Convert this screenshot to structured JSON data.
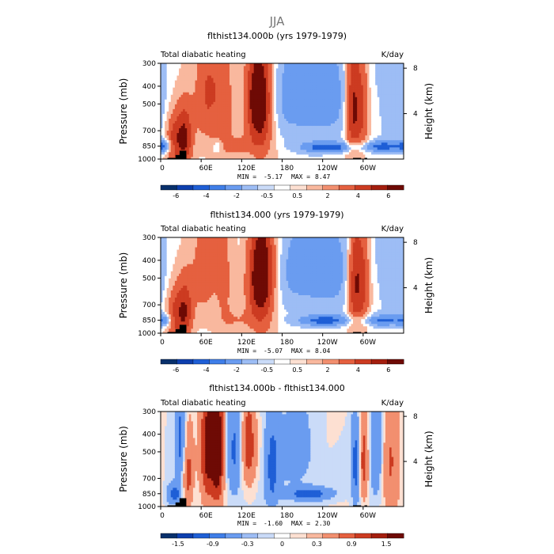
{
  "figure_title": "JJA",
  "colors": {
    "scale": [
      "#08306b",
      "#0d3fae",
      "#1f5fd6",
      "#3f7ee8",
      "#6a9cf0",
      "#9dbdf5",
      "#cadbf8",
      "#ffffff",
      "#fde0d2",
      "#f9b89e",
      "#f28f6f",
      "#e5603f",
      "#cc3b21",
      "#a41e0e",
      "#6e0a05"
    ],
    "terrain": "#000000"
  },
  "chart_data": [
    {
      "type": "heatmap",
      "title": "flthist134.000b (yrs 1979-1979)",
      "left_label": "Total diabatic heating",
      "right_label": "K/day",
      "xlabel": "",
      "ylabel": "Pressure (mb)",
      "ylabel_right": "Height (km)",
      "x_ticks": [
        "0",
        "60E",
        "120E",
        "180",
        "120W",
        "60W"
      ],
      "x_tick_lons": [
        0,
        60,
        120,
        180,
        240,
        300
      ],
      "xlim": [
        0,
        360
      ],
      "y_ticks": [
        "300",
        "400",
        "500",
        "700",
        "850",
        "1000"
      ],
      "y_tick_values": [
        300,
        400,
        500,
        700,
        850,
        1000
      ],
      "ylim": [
        1000,
        300
      ],
      "right_ticks": [
        "8",
        "4"
      ],
      "right_tick_km": [
        8,
        4
      ],
      "stats": {
        "min_label": "MIN =",
        "min": "-5.17",
        "max_label": "MAX =",
        "max": "8.47"
      },
      "colorbar_labels": [
        "-6",
        "-4",
        "-2",
        "-0.5",
        "0.5",
        "2",
        "4",
        "6"
      ],
      "colorbar_levels": [
        -6,
        -4,
        -2,
        -0.5,
        0.5,
        2,
        4,
        6
      ],
      "terrain_lons": [
        [
          10,
          28
        ],
        [
          22,
          32
        ],
        [
          28,
          38
        ],
        [
          285,
          297
        ],
        [
          302,
          306
        ]
      ],
      "terrain_ptop": [
        985,
        950,
        900,
        985,
        985
      ],
      "features": [
        {
          "lon": 35,
          "p": 780,
          "value": 6.5,
          "wlon": 9,
          "wp": 220
        },
        {
          "lon": 18,
          "p": 800,
          "value": 4,
          "wlon": 8,
          "wp": 200
        },
        {
          "lon": 70,
          "p": 450,
          "value": 4,
          "wlon": 14,
          "wp": 260
        },
        {
          "lon": 95,
          "p": 500,
          "value": 3,
          "wlon": 10,
          "wp": 300
        },
        {
          "lon": 145,
          "p": 420,
          "value": 7.5,
          "wlon": 14,
          "wp": 200
        },
        {
          "lon": 148,
          "p": 700,
          "value": 4,
          "wlon": 14,
          "wp": 250
        },
        {
          "lon": 285,
          "p": 500,
          "value": 7.5,
          "wlon": 8,
          "wp": 260
        },
        {
          "lon": 300,
          "p": 500,
          "value": 4,
          "wlon": 7,
          "wp": 250
        },
        {
          "lon": 200,
          "p": 450,
          "value": -2.5,
          "wlon": 40,
          "wp": 200
        },
        {
          "lon": 250,
          "p": 420,
          "value": -2,
          "wlon": 40,
          "wp": 220
        },
        {
          "lon": 250,
          "p": 860,
          "value": -5,
          "wlon": 30,
          "wp": 40
        },
        {
          "lon": 330,
          "p": 850,
          "value": -4.5,
          "wlon": 20,
          "wp": 40
        },
        {
          "lon": 5,
          "p": 850,
          "value": -4,
          "wlon": 10,
          "wp": 50
        },
        {
          "lon": 85,
          "p": 850,
          "value": -2,
          "wlon": 6,
          "wp": 50
        },
        {
          "lon": 350,
          "p": 450,
          "value": -1.5,
          "wlon": 15,
          "wp": 250
        },
        {
          "lon": 115,
          "p": 850,
          "value": 2,
          "wlon": 15,
          "wp": 80
        }
      ]
    },
    {
      "type": "heatmap",
      "title": "flthist134.000 (yrs 1979-1979)",
      "left_label": "Total diabatic heating",
      "right_label": "K/day",
      "xlabel": "",
      "ylabel": "Pressure (mb)",
      "ylabel_right": "Height (km)",
      "x_ticks": [
        "0",
        "60E",
        "120E",
        "180",
        "120W",
        "60W"
      ],
      "x_tick_lons": [
        0,
        60,
        120,
        180,
        240,
        300
      ],
      "xlim": [
        0,
        360
      ],
      "y_ticks": [
        "300",
        "400",
        "500",
        "700",
        "850",
        "1000"
      ],
      "y_tick_values": [
        300,
        400,
        500,
        700,
        850,
        1000
      ],
      "ylim": [
        1000,
        300
      ],
      "right_ticks": [
        "8",
        "4"
      ],
      "right_tick_km": [
        8,
        4
      ],
      "stats": {
        "min_label": "MIN =",
        "min": "-5.07",
        "max_label": "MAX =",
        "max": "8.04"
      },
      "colorbar_labels": [
        "-6",
        "-4",
        "-2",
        "-0.5",
        "0.5",
        "2",
        "4",
        "6"
      ],
      "colorbar_levels": [
        -6,
        -4,
        -2,
        -0.5,
        0.5,
        2,
        4,
        6
      ],
      "terrain_lons": [
        [
          10,
          28
        ],
        [
          22,
          32
        ],
        [
          28,
          38
        ],
        [
          285,
          297
        ],
        [
          302,
          306
        ]
      ],
      "terrain_ptop": [
        985,
        950,
        900,
        985,
        985
      ],
      "features": [
        {
          "lon": 35,
          "p": 780,
          "value": 6,
          "wlon": 9,
          "wp": 220
        },
        {
          "lon": 18,
          "p": 800,
          "value": 3.5,
          "wlon": 8,
          "wp": 200
        },
        {
          "lon": 65,
          "p": 450,
          "value": 3,
          "wlon": 14,
          "wp": 260
        },
        {
          "lon": 95,
          "p": 500,
          "value": 2.5,
          "wlon": 10,
          "wp": 300
        },
        {
          "lon": 150,
          "p": 420,
          "value": 7,
          "wlon": 15,
          "wp": 210
        },
        {
          "lon": 148,
          "p": 700,
          "value": 4,
          "wlon": 14,
          "wp": 250
        },
        {
          "lon": 288,
          "p": 500,
          "value": 7,
          "wlon": 8,
          "wp": 260
        },
        {
          "lon": 302,
          "p": 500,
          "value": 4,
          "wlon": 7,
          "wp": 250
        },
        {
          "lon": 205,
          "p": 450,
          "value": -2,
          "wlon": 40,
          "wp": 200
        },
        {
          "lon": 255,
          "p": 420,
          "value": -2,
          "wlon": 40,
          "wp": 220
        },
        {
          "lon": 245,
          "p": 850,
          "value": -4.5,
          "wlon": 30,
          "wp": 40
        },
        {
          "lon": 330,
          "p": 850,
          "value": -4,
          "wlon": 20,
          "wp": 40
        },
        {
          "lon": 5,
          "p": 850,
          "value": -3.5,
          "wlon": 10,
          "wp": 50
        },
        {
          "lon": 350,
          "p": 450,
          "value": -1.5,
          "wlon": 15,
          "wp": 250
        },
        {
          "lon": 115,
          "p": 850,
          "value": 1.5,
          "wlon": 15,
          "wp": 80
        }
      ]
    },
    {
      "type": "heatmap",
      "title": "flthist134.000b - flthist134.000",
      "left_label": "Total diabatic heating",
      "right_label": "K/day",
      "xlabel": "",
      "ylabel": "Pressure (mb)",
      "ylabel_right": "Height (km)",
      "x_ticks": [
        "0",
        "60E",
        "120E",
        "180",
        "120W",
        "60W"
      ],
      "x_tick_lons": [
        0,
        60,
        120,
        180,
        240,
        300
      ],
      "xlim": [
        0,
        360
      ],
      "y_ticks": [
        "300",
        "400",
        "500",
        "700",
        "850",
        "1000"
      ],
      "y_tick_values": [
        300,
        400,
        500,
        700,
        850,
        1000
      ],
      "ylim": [
        1000,
        300
      ],
      "right_ticks": [
        "8",
        "4"
      ],
      "right_tick_km": [
        8,
        4
      ],
      "stats": {
        "min_label": "MIN =",
        "min": "-1.60",
        "max_label": "MAX =",
        "max": "2.30"
      },
      "colorbar_labels": [
        "-1.5",
        "-0.9",
        "-0.3",
        "0",
        "0.3",
        "0.9",
        "1.5"
      ],
      "colorbar_levels": [
        -1.5,
        -0.9,
        -0.3,
        0,
        0.3,
        0.9,
        1.5
      ],
      "terrain_lons": [
        [
          10,
          28
        ],
        [
          22,
          32
        ],
        [
          28,
          38
        ],
        [
          285,
          297
        ],
        [
          302,
          306
        ]
      ],
      "terrain_ptop": [
        985,
        950,
        900,
        985,
        985
      ],
      "features": [
        {
          "lon": 70,
          "p": 500,
          "value": 1.8,
          "wlon": 8,
          "wp": 300
        },
        {
          "lon": 85,
          "p": 500,
          "value": 2,
          "wlon": 6,
          "wp": 300
        },
        {
          "lon": 30,
          "p": 450,
          "value": -1.2,
          "wlon": 6,
          "wp": 200
        },
        {
          "lon": 40,
          "p": 650,
          "value": 1.2,
          "wlon": 6,
          "wp": 250
        },
        {
          "lon": 110,
          "p": 500,
          "value": -1,
          "wlon": 8,
          "wp": 250
        },
        {
          "lon": 130,
          "p": 450,
          "value": 1.3,
          "wlon": 8,
          "wp": 200
        },
        {
          "lon": 165,
          "p": 600,
          "value": -1,
          "wlon": 8,
          "wp": 300
        },
        {
          "lon": 200,
          "p": 500,
          "value": -0.6,
          "wlon": 20,
          "wp": 200
        },
        {
          "lon": 220,
          "p": 850,
          "value": -1.2,
          "wlon": 25,
          "wp": 50
        },
        {
          "lon": 290,
          "p": 600,
          "value": -1.4,
          "wlon": 5,
          "wp": 250
        },
        {
          "lon": 300,
          "p": 550,
          "value": 1.3,
          "wlon": 6,
          "wp": 250
        },
        {
          "lon": 320,
          "p": 500,
          "value": -1,
          "wlon": 8,
          "wp": 250
        },
        {
          "lon": 340,
          "p": 600,
          "value": 1,
          "wlon": 10,
          "wp": 300
        },
        {
          "lon": 20,
          "p": 850,
          "value": -1.2,
          "wlon": 8,
          "wp": 80
        }
      ]
    }
  ]
}
